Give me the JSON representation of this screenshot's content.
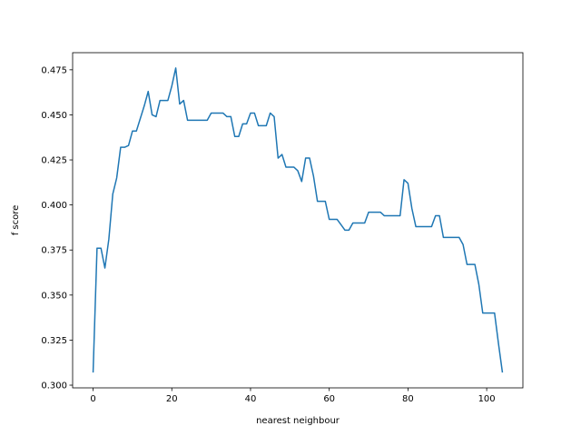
{
  "chart_data": {
    "type": "line",
    "title": "",
    "xlabel": "nearest neighbour",
    "ylabel": "f score",
    "xlim": [
      -5.2,
      109.2
    ],
    "ylim": [
      0.2985,
      0.4845
    ],
    "xticks": [
      0,
      20,
      40,
      60,
      80,
      100
    ],
    "yticks": [
      0.3,
      0.325,
      0.35,
      0.375,
      0.4,
      0.425,
      0.45,
      0.475
    ],
    "ytick_labels": [
      "0.300",
      "0.325",
      "0.350",
      "0.375",
      "0.400",
      "0.425",
      "0.450",
      "0.475"
    ],
    "grid": false,
    "legend": "none",
    "line_color": "#1f77b4",
    "series": [
      {
        "x": [
          0,
          1,
          2,
          3,
          4,
          5,
          6,
          7,
          8,
          9,
          10,
          11,
          12,
          13,
          14,
          15,
          16,
          17,
          18,
          19,
          20,
          21,
          22,
          23,
          24,
          25,
          26,
          27,
          28,
          29,
          30,
          31,
          32,
          33,
          34,
          35,
          36,
          37,
          38,
          39,
          40,
          41,
          42,
          43,
          44,
          45,
          46,
          47,
          48,
          49,
          50,
          51,
          52,
          53,
          54,
          55,
          56,
          57,
          58,
          59,
          60,
          61,
          62,
          63,
          64,
          65,
          66,
          67,
          68,
          69,
          70,
          71,
          72,
          73,
          74,
          75,
          76,
          77,
          78,
          79,
          80,
          81,
          82,
          83,
          84,
          85,
          86,
          87,
          88,
          89,
          90,
          91,
          92,
          93,
          94,
          95,
          96,
          97,
          98,
          99,
          100,
          101,
          102,
          103,
          104
        ],
        "values": [
          0.307,
          0.376,
          0.376,
          0.365,
          0.381,
          0.406,
          0.415,
          0.432,
          0.432,
          0.433,
          0.441,
          0.441,
          0.448,
          0.455,
          0.463,
          0.45,
          0.449,
          0.458,
          0.458,
          0.458,
          0.466,
          0.476,
          0.456,
          0.458,
          0.447,
          0.447,
          0.447,
          0.447,
          0.447,
          0.447,
          0.451,
          0.451,
          0.451,
          0.451,
          0.449,
          0.449,
          0.438,
          0.438,
          0.445,
          0.445,
          0.451,
          0.451,
          0.444,
          0.444,
          0.444,
          0.451,
          0.449,
          0.426,
          0.428,
          0.421,
          0.421,
          0.421,
          0.419,
          0.413,
          0.426,
          0.426,
          0.416,
          0.402,
          0.402,
          0.402,
          0.392,
          0.392,
          0.392,
          0.389,
          0.386,
          0.386,
          0.39,
          0.39,
          0.39,
          0.39,
          0.396,
          0.396,
          0.396,
          0.396,
          0.394,
          0.394,
          0.394,
          0.394,
          0.394,
          0.414,
          0.412,
          0.398,
          0.388,
          0.388,
          0.388,
          0.388,
          0.388,
          0.394,
          0.394,
          0.382,
          0.382,
          0.382,
          0.382,
          0.382,
          0.378,
          0.367,
          0.367,
          0.367,
          0.356,
          0.34,
          0.34,
          0.34,
          0.34,
          0.323,
          0.307
        ]
      }
    ]
  }
}
